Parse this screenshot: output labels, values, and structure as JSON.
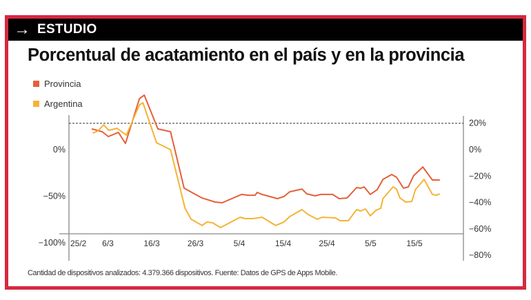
{
  "header": {
    "tag": "ESTUDIO",
    "icon": "arrow-right-icon"
  },
  "footnote": "Cantidad de dispositivos analizados:  4.379.366 dispositivos. Fuente: Datos de GPS de Apps Mobile.",
  "colors": {
    "frame": "#d7283f",
    "provincia": "#e4603a",
    "argentina": "#f5b335"
  },
  "chart_data": {
    "type": "line",
    "title": "Porcentual de acatamiento en el país y en la provincia",
    "legend_placement": "top-left",
    "x_unit": "days since 25/2",
    "x_ticks": [
      {
        "day": 0,
        "label": "25/2"
      },
      {
        "day": 10,
        "label": "6/3"
      },
      {
        "day": 20,
        "label": "16/3"
      },
      {
        "day": 30,
        "label": "26/3"
      },
      {
        "day": 40,
        "label": "5/4"
      },
      {
        "day": 50,
        "label": "15/4"
      },
      {
        "day": 60,
        "label": "25/4"
      },
      {
        "day": 70,
        "label": "5/5"
      },
      {
        "day": 80,
        "label": "15/5"
      }
    ],
    "y_left_ticks": [
      {
        "value": 0,
        "label": "0%"
      },
      {
        "value": -50,
        "label": "-50%"
      },
      {
        "value": -100,
        "label": "-100%"
      }
    ],
    "y_right_ticks": [
      {
        "value": 20,
        "label": "20%"
      },
      {
        "value": 0,
        "label": "0%"
      },
      {
        "value": -20,
        "label": "-20%"
      },
      {
        "value": -40,
        "label": "-40%"
      },
      {
        "value": -60,
        "label": "-60%"
      },
      {
        "value": -80,
        "label": "-80%"
      }
    ],
    "y_right_range": [
      -80,
      20
    ],
    "reference_line": {
      "value": 20,
      "style": "dashed"
    },
    "series": [
      {
        "name": "Provincia",
        "color": "#e4603a",
        "points": [
          [
            6.3,
            15.7
          ],
          [
            8.7,
            13.6
          ],
          [
            10.1,
            9.9
          ],
          [
            12.4,
            13.1
          ],
          [
            14.0,
            4.7
          ],
          [
            17.2,
            38.6
          ],
          [
            18.3,
            41.3
          ],
          [
            21.4,
            15.7
          ],
          [
            24.3,
            13.6
          ],
          [
            27.4,
            -29.2
          ],
          [
            31.5,
            -36.6
          ],
          [
            34.5,
            -39.7
          ],
          [
            36.1,
            -40.2
          ],
          [
            40.5,
            -33.9
          ],
          [
            42.0,
            -34.5
          ],
          [
            43.6,
            -34.5
          ],
          [
            44.1,
            -32.4
          ],
          [
            45.2,
            -33.9
          ],
          [
            48.7,
            -37.1
          ],
          [
            50.2,
            -35.5
          ],
          [
            51.5,
            -31.9
          ],
          [
            54.3,
            -29.8
          ],
          [
            55.4,
            -33.4
          ],
          [
            57.3,
            -35.0
          ],
          [
            58.6,
            -33.9
          ],
          [
            61.3,
            -33.9
          ],
          [
            62.8,
            -37.1
          ],
          [
            64.6,
            -36.6
          ],
          [
            66.8,
            -28.7
          ],
          [
            67.7,
            -29.2
          ],
          [
            68.5,
            -28.2
          ],
          [
            69.9,
            -33.9
          ],
          [
            71.5,
            -30.3
          ],
          [
            72.8,
            -22.5
          ],
          [
            74.8,
            -18.8
          ],
          [
            75.9,
            -20.9
          ],
          [
            77.5,
            -29.2
          ],
          [
            78.6,
            -28.2
          ],
          [
            79.8,
            -19.8
          ],
          [
            81.9,
            -13.1
          ],
          [
            84.1,
            -23.0
          ],
          [
            85.8,
            -23.0
          ]
        ]
      },
      {
        "name": "Argentina",
        "color": "#f5b335",
        "points": [
          [
            6.5,
            12.5
          ],
          [
            7.7,
            14.1
          ],
          [
            9.0,
            18.8
          ],
          [
            10.2,
            14.6
          ],
          [
            12.1,
            16.2
          ],
          [
            14.2,
            11.0
          ],
          [
            17.2,
            33.9
          ],
          [
            18.0,
            35.5
          ],
          [
            21.1,
            5.2
          ],
          [
            24.3,
            0
          ],
          [
            27.6,
            -44.4
          ],
          [
            29.0,
            -52.7
          ],
          [
            31.5,
            -57.4
          ],
          [
            32.6,
            -54.8
          ],
          [
            33.9,
            -55.4
          ],
          [
            35.7,
            -59.0
          ],
          [
            40.2,
            -51.2
          ],
          [
            41.3,
            -52.2
          ],
          [
            43.1,
            -52.2
          ],
          [
            45.2,
            -51.2
          ],
          [
            48.3,
            -57.4
          ],
          [
            50.2,
            -54.8
          ],
          [
            51.5,
            -50.7
          ],
          [
            54.3,
            -45.4
          ],
          [
            55.7,
            -49.1
          ],
          [
            57.8,
            -52.7
          ],
          [
            58.9,
            -51.2
          ],
          [
            62.0,
            -51.7
          ],
          [
            63.0,
            -53.8
          ],
          [
            64.9,
            -53.8
          ],
          [
            66.8,
            -45.4
          ],
          [
            67.7,
            -46.5
          ],
          [
            68.8,
            -44.9
          ],
          [
            69.9,
            -50.1
          ],
          [
            71.2,
            -46.0
          ],
          [
            72.3,
            -44.4
          ],
          [
            72.8,
            -37.1
          ],
          [
            75.1,
            -28.2
          ],
          [
            75.9,
            -29.8
          ],
          [
            76.7,
            -36.6
          ],
          [
            78.0,
            -39.7
          ],
          [
            79.4,
            -39.2
          ],
          [
            80.2,
            -30.3
          ],
          [
            82.2,
            -22.5
          ],
          [
            84.1,
            -33.9
          ],
          [
            85.0,
            -34.5
          ],
          [
            85.8,
            -33.4
          ]
        ]
      }
    ]
  }
}
